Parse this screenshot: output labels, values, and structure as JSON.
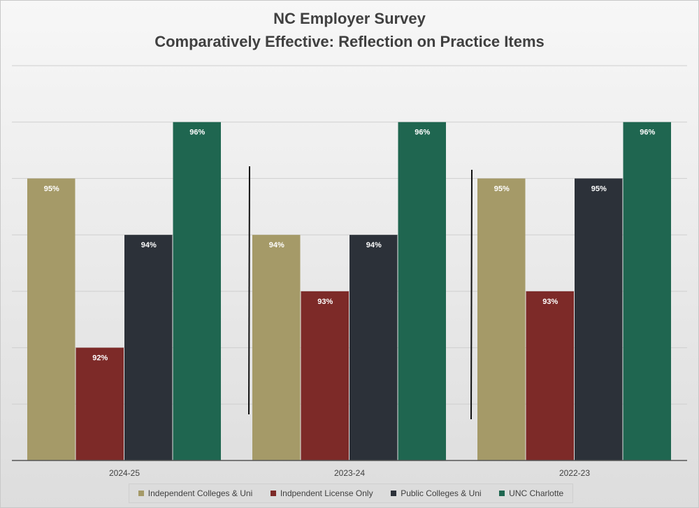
{
  "title_line1": "NC Employer Survey",
  "title_line2": "Comparatively Effective: Reflection on Practice Items",
  "chart_data": {
    "type": "bar",
    "title": "NC Employer Survey / Comparatively Effective: Reflection on Practice Items",
    "categories": [
      "2024-25",
      "2023-24",
      "2022-23"
    ],
    "series": [
      {
        "name": "Independent Colleges & Uni",
        "color": "#a59a68",
        "values": [
          95,
          94,
          95
        ]
      },
      {
        "name": "Indpendent License Only",
        "color": "#7d2a28",
        "values": [
          92,
          93,
          93
        ]
      },
      {
        "name": "Public Colleges & Uni",
        "color": "#2c3139",
        "values": [
          94,
          94,
          95
        ]
      },
      {
        "name": "UNC Charlotte",
        "color": "#1f6650",
        "values": [
          96,
          96,
          96
        ]
      }
    ],
    "value_suffix": "%",
    "ylim": [
      90,
      97
    ],
    "y_gridline_step": 1,
    "y_tick_labels_shown": false,
    "grid": true,
    "legend_position": "bottom"
  }
}
